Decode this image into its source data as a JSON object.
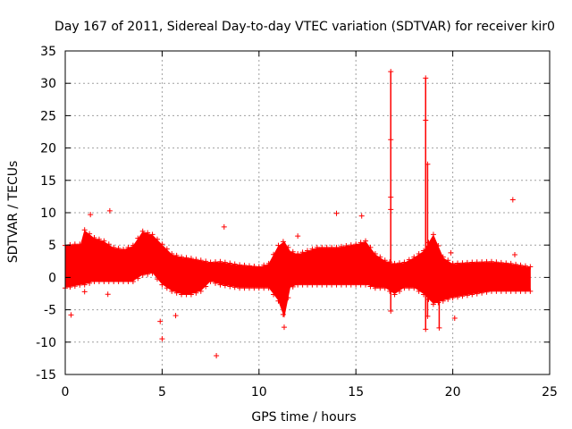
{
  "chart_data": {
    "type": "scatter",
    "title": "Day 167 of 2011, Sidereal Day-to-day VTEC variation (SDTVAR) for receiver kir0",
    "xlabel": "GPS time / hours",
    "ylabel": "SDTVAR / TECUs",
    "xlim": [
      0,
      25
    ],
    "ylim": [
      -15,
      35
    ],
    "xticks": [
      0,
      5,
      10,
      15,
      20,
      25
    ],
    "yticks": [
      -15,
      -10,
      -5,
      0,
      5,
      10,
      15,
      20,
      25,
      30,
      35
    ],
    "grid": true,
    "marker": "+",
    "color": "#ff0000",
    "series": [
      {
        "name": "SDTVAR",
        "envelope": {
          "x": [
            0.0,
            0.5,
            0.8,
            1.0,
            1.5,
            2.0,
            2.5,
            3.0,
            3.5,
            4.0,
            4.5,
            5.0,
            5.5,
            6.0,
            6.5,
            7.0,
            7.5,
            8.0,
            9.0,
            10.0,
            10.5,
            11.0,
            11.3,
            11.6,
            12.0,
            13.0,
            14.0,
            15.0,
            15.5,
            16.0,
            16.5,
            17.0,
            17.5,
            18.0,
            18.5,
            19.0,
            19.5,
            20.0,
            21.0,
            22.0,
            23.0,
            24.0
          ],
          "upper": [
            4.8,
            5.0,
            5.0,
            7.2,
            6.0,
            5.5,
            4.5,
            4.2,
            4.8,
            7.0,
            6.5,
            5.0,
            3.5,
            3.0,
            2.8,
            2.5,
            2.2,
            2.3,
            1.8,
            1.5,
            2.0,
            4.8,
            5.5,
            4.0,
            3.5,
            4.5,
            4.5,
            5.0,
            5.5,
            3.5,
            2.5,
            2.0,
            2.2,
            3.0,
            4.0,
            6.5,
            3.0,
            2.0,
            2.2,
            2.3,
            2.0,
            1.5
          ],
          "lower": [
            -1.5,
            -1.2,
            -1.0,
            -1.0,
            -0.5,
            -0.5,
            -0.5,
            -0.5,
            -0.5,
            0.5,
            0.8,
            -1.0,
            -2.0,
            -2.5,
            -2.5,
            -2.0,
            -0.5,
            -1.0,
            -1.5,
            -1.5,
            -1.5,
            -3.5,
            -6.0,
            -1.5,
            -1.0,
            -1.0,
            -1.0,
            -1.0,
            -1.0,
            -1.5,
            -1.5,
            -2.5,
            -1.5,
            -1.5,
            -2.5,
            -4.0,
            -3.5,
            -3.0,
            -2.5,
            -2.0,
            -2.0,
            -2.0
          ]
        },
        "spikes": [
          {
            "x": 16.8,
            "ymin": -5.2,
            "ymax": 31.8
          },
          {
            "x": 18.6,
            "ymin": -8.0,
            "ymax": 30.8
          },
          {
            "x": 18.7,
            "ymin": -6.0,
            "ymax": 17.5
          },
          {
            "x": 19.3,
            "ymin": -7.8,
            "ymax": 2.0
          }
        ],
        "outliers": [
          {
            "x": 0.3,
            "y": -5.8
          },
          {
            "x": 1.0,
            "y": -2.2
          },
          {
            "x": 1.3,
            "y": 9.7
          },
          {
            "x": 2.2,
            "y": -2.6
          },
          {
            "x": 2.3,
            "y": 10.3
          },
          {
            "x": 4.9,
            "y": -6.8
          },
          {
            "x": 5.0,
            "y": -9.5
          },
          {
            "x": 5.7,
            "y": -5.9
          },
          {
            "x": 7.8,
            "y": -12.1
          },
          {
            "x": 8.2,
            "y": 7.8
          },
          {
            "x": 11.3,
            "y": -7.7
          },
          {
            "x": 12.0,
            "y": 6.4
          },
          {
            "x": 14.0,
            "y": 9.9
          },
          {
            "x": 15.3,
            "y": 9.5
          },
          {
            "x": 16.8,
            "y": 12.4
          },
          {
            "x": 16.8,
            "y": 10.5
          },
          {
            "x": 16.8,
            "y": 21.3
          },
          {
            "x": 18.6,
            "y": 24.3
          },
          {
            "x": 19.9,
            "y": 3.8
          },
          {
            "x": 20.1,
            "y": -6.3
          },
          {
            "x": 23.1,
            "y": 12.0
          },
          {
            "x": 23.2,
            "y": 3.5
          }
        ]
      }
    ]
  }
}
